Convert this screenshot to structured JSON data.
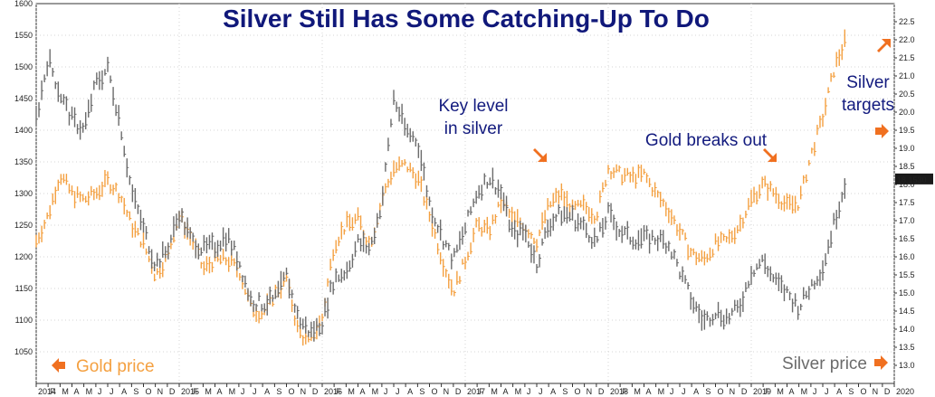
{
  "chart_data": {
    "type": "line",
    "title": "Silver Still Has Some Catching-Up To Do",
    "xlabel": "",
    "ylabel_left": "",
    "ylabel_right": "",
    "x_range": [
      2014.0,
      2020.0
    ],
    "ylim_left": [
      1000,
      1600
    ],
    "ylim_right": [
      12.5,
      23.0
    ],
    "grid": true,
    "current_value_label": "18.1530",
    "colors": {
      "gold": "#f4a040",
      "silver": "#6b6b6b",
      "title": "#10187a",
      "arrow": "#f07020"
    },
    "yticks_left": [
      1050,
      1100,
      1150,
      1200,
      1250,
      1300,
      1350,
      1400,
      1450,
      1500,
      1550,
      1600
    ],
    "yticks_right": [
      "13.0",
      "13.5",
      "14.0",
      "14.5",
      "15.0",
      "15.5",
      "16.0",
      "16.5",
      "17.0",
      "17.5",
      "18.0",
      "18.5",
      "19.0",
      "19.5",
      "20.0",
      "20.5",
      "21.0",
      "21.5",
      "22.0",
      "22.5"
    ],
    "xticks": [
      {
        "t": 2014.0,
        "label": "2014",
        "major": true
      },
      {
        "t": 2014.083,
        "label": "F"
      },
      {
        "t": 2014.167,
        "label": "M"
      },
      {
        "t": 2014.25,
        "label": "A"
      },
      {
        "t": 2014.333,
        "label": "M"
      },
      {
        "t": 2014.417,
        "label": "J"
      },
      {
        "t": 2014.5,
        "label": "J"
      },
      {
        "t": 2014.583,
        "label": "A"
      },
      {
        "t": 2014.667,
        "label": "S"
      },
      {
        "t": 2014.75,
        "label": "O"
      },
      {
        "t": 2014.833,
        "label": "N"
      },
      {
        "t": 2014.917,
        "label": "D"
      },
      {
        "t": 2015.0,
        "label": "2015",
        "major": true
      },
      {
        "t": 2015.083,
        "label": "F"
      },
      {
        "t": 2015.167,
        "label": "M"
      },
      {
        "t": 2015.25,
        "label": "A"
      },
      {
        "t": 2015.333,
        "label": "M"
      },
      {
        "t": 2015.417,
        "label": "J"
      },
      {
        "t": 2015.5,
        "label": "J"
      },
      {
        "t": 2015.583,
        "label": "A"
      },
      {
        "t": 2015.667,
        "label": "S"
      },
      {
        "t": 2015.75,
        "label": "O"
      },
      {
        "t": 2015.833,
        "label": "N"
      },
      {
        "t": 2015.917,
        "label": "D"
      },
      {
        "t": 2016.0,
        "label": "2016",
        "major": true
      },
      {
        "t": 2016.083,
        "label": "F"
      },
      {
        "t": 2016.167,
        "label": "M"
      },
      {
        "t": 2016.25,
        "label": "A"
      },
      {
        "t": 2016.333,
        "label": "M"
      },
      {
        "t": 2016.417,
        "label": "J"
      },
      {
        "t": 2016.5,
        "label": "J"
      },
      {
        "t": 2016.583,
        "label": "A"
      },
      {
        "t": 2016.667,
        "label": "S"
      },
      {
        "t": 2016.75,
        "label": "O"
      },
      {
        "t": 2016.833,
        "label": "N"
      },
      {
        "t": 2016.917,
        "label": "D"
      },
      {
        "t": 2017.0,
        "label": "2017",
        "major": true
      },
      {
        "t": 2017.083,
        "label": "F"
      },
      {
        "t": 2017.167,
        "label": "M"
      },
      {
        "t": 2017.25,
        "label": "A"
      },
      {
        "t": 2017.333,
        "label": "M"
      },
      {
        "t": 2017.417,
        "label": "J"
      },
      {
        "t": 2017.5,
        "label": "J"
      },
      {
        "t": 2017.583,
        "label": "A"
      },
      {
        "t": 2017.667,
        "label": "S"
      },
      {
        "t": 2017.75,
        "label": "O"
      },
      {
        "t": 2017.833,
        "label": "N"
      },
      {
        "t": 2017.917,
        "label": "D"
      },
      {
        "t": 2018.0,
        "label": "2018",
        "major": true
      },
      {
        "t": 2018.083,
        "label": "F"
      },
      {
        "t": 2018.167,
        "label": "M"
      },
      {
        "t": 2018.25,
        "label": "A"
      },
      {
        "t": 2018.333,
        "label": "M"
      },
      {
        "t": 2018.417,
        "label": "J"
      },
      {
        "t": 2018.5,
        "label": "J"
      },
      {
        "t": 2018.583,
        "label": "A"
      },
      {
        "t": 2018.667,
        "label": "S"
      },
      {
        "t": 2018.75,
        "label": "O"
      },
      {
        "t": 2018.833,
        "label": "N"
      },
      {
        "t": 2018.917,
        "label": "D"
      },
      {
        "t": 2019.0,
        "label": "2019",
        "major": true
      },
      {
        "t": 2019.083,
        "label": "F"
      },
      {
        "t": 2019.167,
        "label": "M"
      },
      {
        "t": 2019.25,
        "label": "A"
      },
      {
        "t": 2019.333,
        "label": "M"
      },
      {
        "t": 2019.417,
        "label": "J"
      },
      {
        "t": 2019.5,
        "label": "J"
      },
      {
        "t": 2019.583,
        "label": "A"
      },
      {
        "t": 2019.667,
        "label": "S"
      },
      {
        "t": 2019.75,
        "label": "O"
      },
      {
        "t": 2019.833,
        "label": "N"
      },
      {
        "t": 2019.917,
        "label": "D"
      },
      {
        "t": 2020.0,
        "label": "2020",
        "major": true
      }
    ],
    "series": [
      {
        "name": "Gold price",
        "axis": "left",
        "color": "#f4a040",
        "points": [
          [
            2014.0,
            1225
          ],
          [
            2014.083,
            1265
          ],
          [
            2014.167,
            1330
          ],
          [
            2014.25,
            1300
          ],
          [
            2014.333,
            1290
          ],
          [
            2014.417,
            1300
          ],
          [
            2014.5,
            1320
          ],
          [
            2014.583,
            1300
          ],
          [
            2014.667,
            1250
          ],
          [
            2014.75,
            1220
          ],
          [
            2014.833,
            1170
          ],
          [
            2014.917,
            1200
          ],
          [
            2015.0,
            1265
          ],
          [
            2015.083,
            1230
          ],
          [
            2015.167,
            1180
          ],
          [
            2015.25,
            1195
          ],
          [
            2015.333,
            1195
          ],
          [
            2015.417,
            1180
          ],
          [
            2015.5,
            1120
          ],
          [
            2015.583,
            1110
          ],
          [
            2015.667,
            1140
          ],
          [
            2015.75,
            1165
          ],
          [
            2015.833,
            1080
          ],
          [
            2015.917,
            1065
          ],
          [
            2016.0,
            1105
          ],
          [
            2016.083,
            1220
          ],
          [
            2016.167,
            1250
          ],
          [
            2016.25,
            1260
          ],
          [
            2016.333,
            1220
          ],
          [
            2016.417,
            1290
          ],
          [
            2016.5,
            1340
          ],
          [
            2016.583,
            1345
          ],
          [
            2016.667,
            1325
          ],
          [
            2016.75,
            1265
          ],
          [
            2016.833,
            1200
          ],
          [
            2016.917,
            1145
          ],
          [
            2017.0,
            1195
          ],
          [
            2017.083,
            1250
          ],
          [
            2017.167,
            1240
          ],
          [
            2017.25,
            1285
          ],
          [
            2017.333,
            1260
          ],
          [
            2017.417,
            1250
          ],
          [
            2017.5,
            1225
          ],
          [
            2017.583,
            1280
          ],
          [
            2017.667,
            1300
          ],
          [
            2017.75,
            1275
          ],
          [
            2017.833,
            1280
          ],
          [
            2017.917,
            1265
          ],
          [
            2018.0,
            1340
          ],
          [
            2018.083,
            1330
          ],
          [
            2018.167,
            1325
          ],
          [
            2018.25,
            1330
          ],
          [
            2018.333,
            1300
          ],
          [
            2018.417,
            1275
          ],
          [
            2018.5,
            1240
          ],
          [
            2018.583,
            1205
          ],
          [
            2018.667,
            1195
          ],
          [
            2018.75,
            1220
          ],
          [
            2018.833,
            1225
          ],
          [
            2018.917,
            1250
          ],
          [
            2019.0,
            1290
          ],
          [
            2019.083,
            1315
          ],
          [
            2019.167,
            1300
          ],
          [
            2019.25,
            1280
          ],
          [
            2019.333,
            1285
          ],
          [
            2019.417,
            1360
          ],
          [
            2019.5,
            1420
          ],
          [
            2019.583,
            1500
          ],
          [
            2019.667,
            1545
          ]
        ]
      },
      {
        "name": "Silver price",
        "axis": "right",
        "color": "#6b6b6b",
        "points": [
          [
            2014.0,
            19.8
          ],
          [
            2014.083,
            21.5
          ],
          [
            2014.167,
            20.5
          ],
          [
            2014.25,
            19.8
          ],
          [
            2014.333,
            19.5
          ],
          [
            2014.417,
            20.8
          ],
          [
            2014.5,
            21.2
          ],
          [
            2014.583,
            19.8
          ],
          [
            2014.667,
            17.8
          ],
          [
            2014.75,
            16.8
          ],
          [
            2014.833,
            15.8
          ],
          [
            2014.917,
            16.2
          ],
          [
            2015.0,
            17.2
          ],
          [
            2015.083,
            16.5
          ],
          [
            2015.167,
            16.2
          ],
          [
            2015.25,
            16.3
          ],
          [
            2015.333,
            16.6
          ],
          [
            2015.417,
            15.9
          ],
          [
            2015.5,
            14.8
          ],
          [
            2015.583,
            14.7
          ],
          [
            2015.667,
            14.8
          ],
          [
            2015.75,
            15.5
          ],
          [
            2015.833,
            14.3
          ],
          [
            2015.917,
            13.9
          ],
          [
            2016.0,
            14.2
          ],
          [
            2016.083,
            15.4
          ],
          [
            2016.167,
            15.6
          ],
          [
            2016.25,
            16.4
          ],
          [
            2016.333,
            16.2
          ],
          [
            2016.417,
            17.5
          ],
          [
            2016.5,
            20.4
          ],
          [
            2016.583,
            19.5
          ],
          [
            2016.667,
            19.2
          ],
          [
            2016.75,
            17.5
          ],
          [
            2016.833,
            16.6
          ],
          [
            2016.917,
            15.9
          ],
          [
            2017.0,
            16.8
          ],
          [
            2017.083,
            17.8
          ],
          [
            2017.167,
            18.2
          ],
          [
            2017.25,
            17.8
          ],
          [
            2017.333,
            16.6
          ],
          [
            2017.417,
            16.7
          ],
          [
            2017.5,
            15.8
          ],
          [
            2017.583,
            16.9
          ],
          [
            2017.667,
            17.2
          ],
          [
            2017.75,
            17.1
          ],
          [
            2017.833,
            16.8
          ],
          [
            2017.917,
            16.4
          ],
          [
            2018.0,
            17.2
          ],
          [
            2018.083,
            16.7
          ],
          [
            2018.167,
            16.5
          ],
          [
            2018.25,
            16.5
          ],
          [
            2018.333,
            16.5
          ],
          [
            2018.417,
            16.4
          ],
          [
            2018.5,
            15.6
          ],
          [
            2018.583,
            14.8
          ],
          [
            2018.667,
            14.2
          ],
          [
            2018.75,
            14.5
          ],
          [
            2018.833,
            14.3
          ],
          [
            2018.917,
            14.6
          ],
          [
            2019.0,
            15.6
          ],
          [
            2019.083,
            15.9
          ],
          [
            2019.167,
            15.3
          ],
          [
            2019.25,
            15.0
          ],
          [
            2019.333,
            14.6
          ],
          [
            2019.417,
            15.2
          ],
          [
            2019.5,
            15.7
          ],
          [
            2019.583,
            17.0
          ],
          [
            2019.667,
            18.2
          ]
        ]
      }
    ],
    "annotations": [
      {
        "id": "key-level",
        "lines": [
          "Key level",
          "in silver"
        ],
        "arrow": "down-right"
      },
      {
        "id": "gold-breaks",
        "lines": [
          "Gold breaks out"
        ],
        "arrow": "down-right"
      },
      {
        "id": "silver-targets",
        "lines": [
          "Silver",
          "targets"
        ],
        "arrow": "right"
      },
      {
        "id": "gold-price",
        "lines": [
          "Gold price"
        ],
        "arrow": "left"
      },
      {
        "id": "silver-price",
        "lines": [
          "Silver price"
        ],
        "arrow": "right"
      }
    ]
  }
}
